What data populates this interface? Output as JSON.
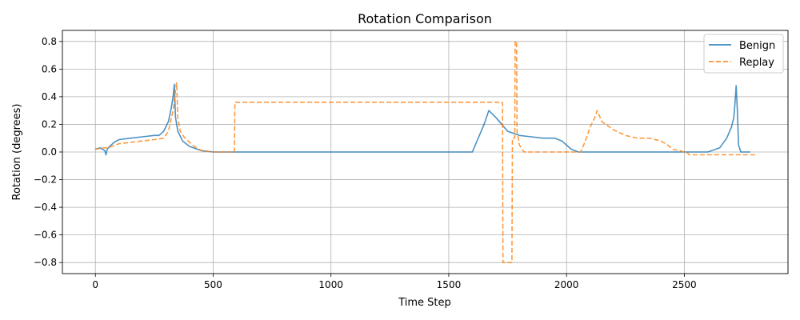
{
  "chart_data": {
    "type": "line",
    "title": "Rotation Comparison",
    "xlabel": "Time Step",
    "ylabel": "Rotation (degrees)",
    "xlim": [
      -140,
      2940
    ],
    "ylim": [
      -0.88,
      0.88
    ],
    "xticks": [
      0,
      500,
      1000,
      1500,
      2000,
      2500
    ],
    "yticks": [
      -0.8,
      -0.6,
      -0.4,
      -0.2,
      0.0,
      0.2,
      0.4,
      0.6,
      0.8
    ],
    "xtick_labels": [
      "0",
      "500",
      "1000",
      "1500",
      "2000",
      "2500"
    ],
    "ytick_labels": [
      "−0.8",
      "−0.6",
      "−0.4",
      "−0.2",
      "0.0",
      "0.2",
      "0.4",
      "0.6",
      "0.8"
    ],
    "grid": true,
    "legend": "top-right",
    "series": [
      {
        "name": "Benign",
        "color": "#1f77b4",
        "style": "solid",
        "x": [
          0,
          20,
          40,
          45,
          50,
          60,
          80,
          100,
          150,
          200,
          250,
          270,
          290,
          310,
          320,
          330,
          335,
          340,
          350,
          370,
          400,
          450,
          500,
          600,
          800,
          1000,
          1100,
          1200,
          1400,
          1500,
          1600,
          1620,
          1650,
          1670,
          1700,
          1750,
          1800,
          1850,
          1900,
          1950,
          1980,
          2000,
          2020,
          2050,
          2100,
          2300,
          2500,
          2600,
          2650,
          2680,
          2700,
          2710,
          2715,
          2720,
          2725,
          2730,
          2740,
          2780
        ],
        "y": [
          0.02,
          0.03,
          0.01,
          -0.02,
          0.02,
          0.04,
          0.07,
          0.09,
          0.1,
          0.11,
          0.12,
          0.12,
          0.15,
          0.22,
          0.3,
          0.4,
          0.49,
          0.25,
          0.15,
          0.08,
          0.04,
          0.01,
          0.0,
          0.0,
          0.0,
          0.0,
          0.0,
          0.0,
          0.0,
          0.0,
          0.0,
          0.08,
          0.2,
          0.3,
          0.25,
          0.15,
          0.12,
          0.11,
          0.1,
          0.1,
          0.08,
          0.05,
          0.02,
          0.0,
          0.0,
          0.0,
          0.0,
          0.0,
          0.03,
          0.1,
          0.18,
          0.25,
          0.35,
          0.48,
          0.3,
          0.05,
          0.0,
          0.0
        ]
      },
      {
        "name": "Replay",
        "color": "#ff7f0e",
        "style": "dashed",
        "x": [
          0,
          30,
          50,
          70,
          100,
          150,
          200,
          250,
          290,
          310,
          330,
          340,
          345,
          350,
          360,
          380,
          420,
          450,
          500,
          590,
          592,
          800,
          1000,
          1200,
          1500,
          1700,
          1728,
          1730,
          1768,
          1770,
          1780,
          1782,
          1788,
          1790,
          1800,
          1820,
          1900,
          2000,
          2060,
          2080,
          2100,
          2120,
          2130,
          2150,
          2200,
          2250,
          2300,
          2350,
          2400,
          2430,
          2450,
          2480,
          2500,
          2510,
          2520,
          2800
        ],
        "y": [
          0.02,
          0.03,
          0.03,
          0.04,
          0.06,
          0.07,
          0.08,
          0.09,
          0.1,
          0.15,
          0.3,
          0.45,
          0.5,
          0.25,
          0.15,
          0.1,
          0.04,
          0.01,
          0.0,
          0.0,
          0.36,
          0.36,
          0.36,
          0.36,
          0.36,
          0.36,
          0.36,
          -0.8,
          -0.8,
          0.1,
          0.1,
          0.8,
          0.8,
          0.15,
          0.05,
          0.0,
          0.0,
          0.0,
          0.0,
          0.08,
          0.18,
          0.25,
          0.3,
          0.22,
          0.16,
          0.12,
          0.1,
          0.1,
          0.08,
          0.05,
          0.02,
          0.01,
          0.0,
          0.0,
          -0.02,
          -0.02
        ]
      }
    ]
  }
}
